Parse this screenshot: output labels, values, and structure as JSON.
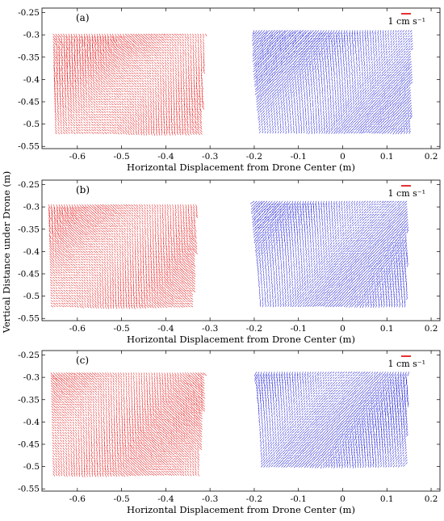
{
  "chart_data": {
    "type": "quiver",
    "shared_ylabel": "Vertical Distance under Drone (m)",
    "xlim": [
      -0.68,
      0.22
    ],
    "ylim": [
      -0.555,
      -0.24
    ],
    "xticks": [
      -0.6,
      -0.5,
      -0.4,
      -0.3,
      -0.2,
      -0.1,
      0,
      0.1,
      0.2
    ],
    "xtick_labels": [
      "-0.6",
      "-0.5",
      "-0.4",
      "-0.3",
      "-0.2",
      "-0.1",
      "0",
      "0.1",
      "0.2"
    ],
    "yticks": [
      -0.25,
      -0.3,
      -0.35,
      -0.4,
      -0.45,
      -0.5,
      -0.55
    ],
    "ytick_labels": [
      "-0.25",
      "-0.3",
      "-0.35",
      "-0.4",
      "-0.45",
      "-0.5",
      "-0.55"
    ],
    "colors": {
      "left_field": "#e41a1c",
      "right_field": "#1f1fd6",
      "scale_bar": "#e41a1c"
    },
    "scale_bar_label": "1 cm s⁻¹",
    "panels": [
      {
        "label": "(a)",
        "xlabel": "Horizontal Displacement from Drone Center (m)",
        "left_region": {
          "x_range": [
            -0.655,
            -0.31
          ],
          "y_top": -0.298,
          "y_bottom": -0.52
        },
        "right_region": {
          "x_range": [
            -0.2,
            0.16
          ],
          "y_top": -0.29,
          "y_bottom": -0.52
        }
      },
      {
        "label": "(b)",
        "xlabel": "Horizontal Displacement from Drone Center (m)",
        "left_region": {
          "x_range": [
            -0.665,
            -0.33
          ],
          "y_top": -0.295,
          "y_bottom": -0.525
        },
        "right_region": {
          "x_range": [
            -0.2,
            0.15
          ],
          "y_top": -0.287,
          "y_bottom": -0.52
        }
      },
      {
        "label": "(c)",
        "xlabel": "Horizontal Displacement from Drone Center (m)",
        "left_region": {
          "x_range": [
            -0.66,
            -0.315
          ],
          "y_top": -0.29,
          "y_bottom": -0.52
        },
        "right_region": {
          "x_range": [
            -0.195,
            0.15
          ],
          "y_top": -0.288,
          "y_bottom": -0.5
        }
      }
    ]
  }
}
